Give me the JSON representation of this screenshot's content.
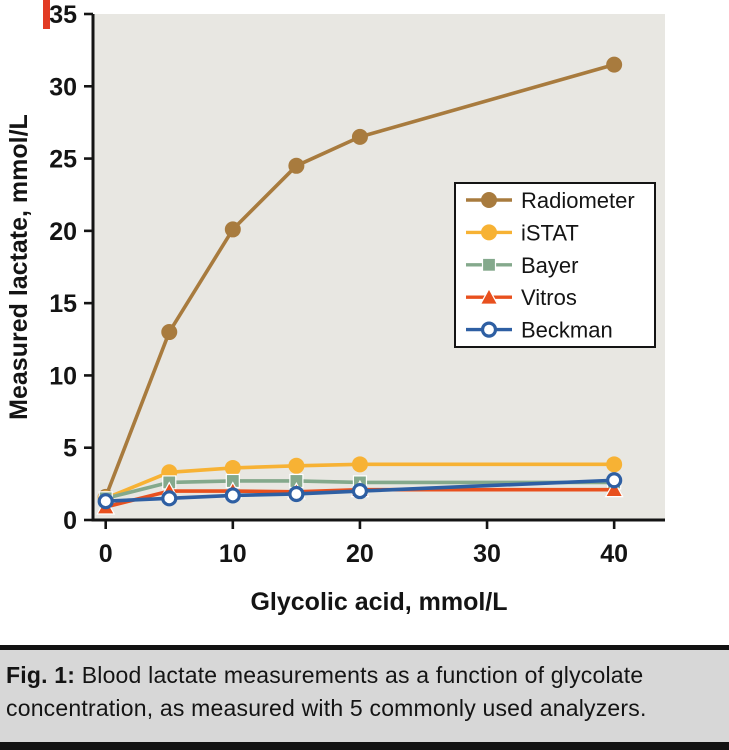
{
  "figure": {
    "caption_label": "Fig. 1:",
    "caption_text": " Blood lactate measurements as a function of glycolate concentration, as measured with 5 commonly used analyzers."
  },
  "chart_data": {
    "type": "line",
    "title": "",
    "xlabel": "Glycolic acid, mmol/L",
    "ylabel": "Measured lactate, mmol/L",
    "x": [
      0,
      5,
      10,
      15,
      20,
      40
    ],
    "xlim": [
      -1,
      44
    ],
    "ylim": [
      0,
      35
    ],
    "xticks": [
      0,
      10,
      20,
      30,
      40
    ],
    "yticks": [
      0,
      5,
      10,
      15,
      20,
      25,
      30,
      35
    ],
    "grid": false,
    "legend_position": "upper-right-inside",
    "plot_bg": "#e8e7e2",
    "axis_color": "#141414",
    "series": [
      {
        "name": "Radiometer",
        "color": "#a87b3e",
        "marker": "circle",
        "values": [
          1.6,
          13.0,
          20.1,
          24.5,
          26.5,
          31.5
        ]
      },
      {
        "name": "iSTAT",
        "color": "#f7b234",
        "marker": "circle",
        "values": [
          1.5,
          3.3,
          3.6,
          3.75,
          3.85,
          3.85
        ]
      },
      {
        "name": "Bayer",
        "color": "#84a98c",
        "marker": "square",
        "values": [
          1.5,
          2.6,
          2.7,
          2.7,
          2.6,
          2.6
        ]
      },
      {
        "name": "Vitros",
        "color": "#e8501e",
        "marker": "triangle",
        "values": [
          0.9,
          2.0,
          2.0,
          1.95,
          2.1,
          2.1
        ]
      },
      {
        "name": "Beckman",
        "color": "#2e5fa3",
        "marker": "open-circle",
        "values": [
          1.3,
          1.5,
          1.7,
          1.8,
          2.0,
          2.75
        ]
      }
    ]
  }
}
